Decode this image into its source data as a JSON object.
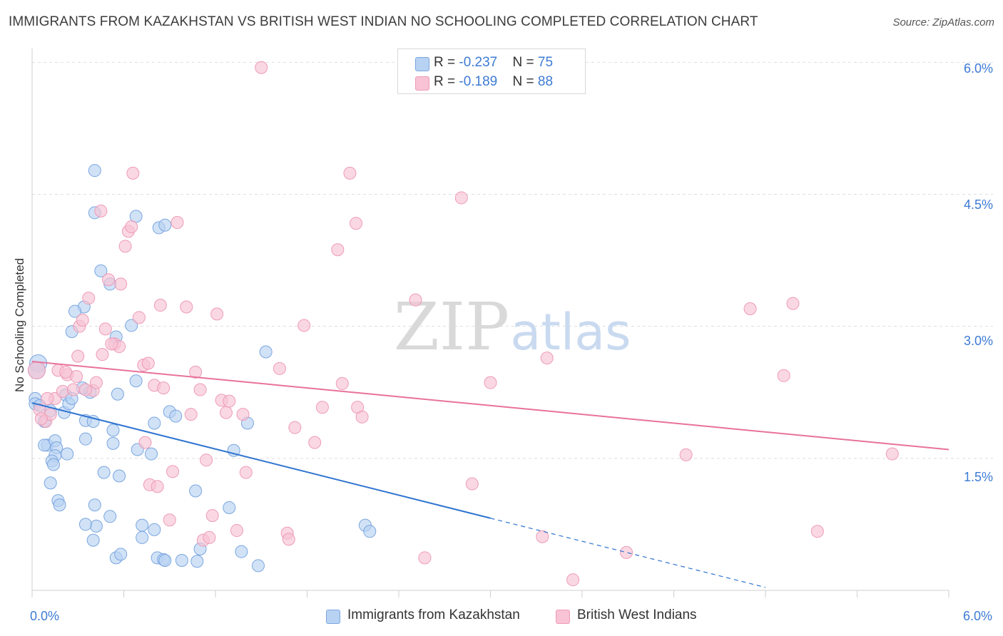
{
  "title": "IMMIGRANTS FROM KAZAKHSTAN VS BRITISH WEST INDIAN NO SCHOOLING COMPLETED CORRELATION CHART",
  "source": "Source: ZipAtlas.com",
  "watermark": {
    "zip": "ZIP",
    "atlas": "atlas"
  },
  "colors": {
    "blue_fill": "#b8d2f3",
    "blue_stroke": "#7aa6df",
    "blue_line": "#2f74d0",
    "pink_fill": "#f8c3d4",
    "pink_stroke": "#ee9bb7",
    "pink_line": "#e8729a",
    "tick_text": "#3d7bd4"
  },
  "legend_top": {
    "rows": [
      {
        "r_label": "R = ",
        "r_value": "-0.237",
        "n_label": "N = ",
        "n_value": "75"
      },
      {
        "r_label": "R = ",
        "r_value": "-0.189",
        "n_label": "N = ",
        "n_value": "88"
      }
    ]
  },
  "legend_bottom": [
    "Immigrants from Kazakhstan",
    "British West Indians"
  ],
  "chart_data": {
    "type": "scatter",
    "title": "IMMIGRANTS FROM KAZAKHSTAN VS BRITISH WEST INDIAN NO SCHOOLING COMPLETED CORRELATION CHART",
    "xlabel": "",
    "ylabel": "No Schooling Completed",
    "xlim": [
      0,
      6
    ],
    "ylim": [
      0,
      6.1
    ],
    "x_tick_labels": [
      "0.0%",
      "6.0%"
    ],
    "y_tick_values": [
      1.5,
      3.0,
      4.5,
      6.0
    ],
    "y_tick_labels": [
      "1.5%",
      "3.0%",
      "4.5%",
      "6.0%"
    ],
    "grid": "horizontal dashed",
    "legend_position": "bottom",
    "series": [
      {
        "name": "Immigrants from Kazakhstan",
        "r": -0.237,
        "n": 75,
        "trend": {
          "x0": 0.0,
          "y0": 2.13,
          "x1": 3.0,
          "y1": 0.82,
          "dash_to_x": 4.8
        },
        "points": [
          [
            0.04,
            2.58
          ],
          [
            0.03,
            2.5
          ],
          [
            0.02,
            2.18
          ],
          [
            0.02,
            2.12
          ],
          [
            0.05,
            2.1
          ],
          [
            0.08,
            1.92
          ],
          [
            0.12,
            2.04
          ],
          [
            0.1,
            1.65
          ],
          [
            0.08,
            1.65
          ],
          [
            0.15,
            1.7
          ],
          [
            0.16,
            1.62
          ],
          [
            0.15,
            1.53
          ],
          [
            0.13,
            1.47
          ],
          [
            0.14,
            1.43
          ],
          [
            0.12,
            1.22
          ],
          [
            0.23,
            1.55
          ],
          [
            0.17,
            1.02
          ],
          [
            0.18,
            0.97
          ],
          [
            0.35,
            1.72
          ],
          [
            0.35,
            1.93
          ],
          [
            0.4,
            1.92
          ],
          [
            0.38,
            2.25
          ],
          [
            0.22,
            2.22
          ],
          [
            0.21,
            2.02
          ],
          [
            0.24,
            2.12
          ],
          [
            0.26,
            2.18
          ],
          [
            0.33,
            2.3
          ],
          [
            0.41,
            0.97
          ],
          [
            0.42,
            0.73
          ],
          [
            0.35,
            0.75
          ],
          [
            0.4,
            0.57
          ],
          [
            0.51,
            0.84
          ],
          [
            0.55,
            0.37
          ],
          [
            0.58,
            0.41
          ],
          [
            0.47,
            1.34
          ],
          [
            0.53,
            1.82
          ],
          [
            0.53,
            1.67
          ],
          [
            0.57,
            1.3
          ],
          [
            0.56,
            2.23
          ],
          [
            0.68,
            2.38
          ],
          [
            0.69,
            1.6
          ],
          [
            0.72,
            0.74
          ],
          [
            0.72,
            0.6
          ],
          [
            0.8,
            0.69
          ],
          [
            0.78,
            1.55
          ],
          [
            0.8,
            1.9
          ],
          [
            0.82,
            0.37
          ],
          [
            0.86,
            0.35
          ],
          [
            0.87,
            0.34
          ],
          [
            0.9,
            2.03
          ],
          [
            0.94,
            1.98
          ],
          [
            0.98,
            0.34
          ],
          [
            1.08,
            0.33
          ],
          [
            1.07,
            1.13
          ],
          [
            1.1,
            0.47
          ],
          [
            1.29,
            0.94
          ],
          [
            1.32,
            1.59
          ],
          [
            1.37,
            0.44
          ],
          [
            1.48,
            0.28
          ],
          [
            1.41,
            1.9
          ],
          [
            1.53,
            2.71
          ],
          [
            0.45,
            3.63
          ],
          [
            0.51,
            3.48
          ],
          [
            0.34,
            3.22
          ],
          [
            0.28,
            3.17
          ],
          [
            0.26,
            2.94
          ],
          [
            0.41,
            4.29
          ],
          [
            0.55,
            2.88
          ],
          [
            0.65,
            3.01
          ],
          [
            0.41,
            4.77
          ],
          [
            0.68,
            4.25
          ],
          [
            0.83,
            4.12
          ],
          [
            0.87,
            4.15
          ],
          [
            2.18,
            0.74
          ],
          [
            2.21,
            0.67
          ]
        ]
      },
      {
        "name": "British West Indians",
        "r": -0.189,
        "n": 88,
        "trend": {
          "x0": 0.0,
          "y0": 2.6,
          "x1": 6.0,
          "y1": 1.6
        },
        "points": [
          [
            0.03,
            2.5
          ],
          [
            0.05,
            2.05
          ],
          [
            0.09,
            1.92
          ],
          [
            0.12,
            2.0
          ],
          [
            0.15,
            2.18
          ],
          [
            0.17,
            2.5
          ],
          [
            0.2,
            2.26
          ],
          [
            0.23,
            2.45
          ],
          [
            0.27,
            2.28
          ],
          [
            0.29,
            2.43
          ],
          [
            0.3,
            2.66
          ],
          [
            0.31,
            3.0
          ],
          [
            0.33,
            3.07
          ],
          [
            0.37,
            3.32
          ],
          [
            0.4,
            2.27
          ],
          [
            0.42,
            2.36
          ],
          [
            0.46,
            2.68
          ],
          [
            0.48,
            2.97
          ],
          [
            0.5,
            3.53
          ],
          [
            0.54,
            2.8
          ],
          [
            0.57,
            2.77
          ],
          [
            0.58,
            3.48
          ],
          [
            0.61,
            3.91
          ],
          [
            0.63,
            4.08
          ],
          [
            0.65,
            4.13
          ],
          [
            0.66,
            4.74
          ],
          [
            0.7,
            3.1
          ],
          [
            0.73,
            2.56
          ],
          [
            0.74,
            1.68
          ],
          [
            0.76,
            2.58
          ],
          [
            0.77,
            1.2
          ],
          [
            0.8,
            2.33
          ],
          [
            0.82,
            1.18
          ],
          [
            0.84,
            3.24
          ],
          [
            0.86,
            2.3
          ],
          [
            0.9,
            0.8
          ],
          [
            0.92,
            1.35
          ],
          [
            0.95,
            4.18
          ],
          [
            1.01,
            3.22
          ],
          [
            1.04,
            2.0
          ],
          [
            1.07,
            2.48
          ],
          [
            1.1,
            2.28
          ],
          [
            1.12,
            0.57
          ],
          [
            1.14,
            1.48
          ],
          [
            1.16,
            0.6
          ],
          [
            1.18,
            0.85
          ],
          [
            1.21,
            3.14
          ],
          [
            1.24,
            2.16
          ],
          [
            1.27,
            2.02
          ],
          [
            1.29,
            2.15
          ],
          [
            1.34,
            0.68
          ],
          [
            1.38,
            2.0
          ],
          [
            1.4,
            1.34
          ],
          [
            1.5,
            5.94
          ],
          [
            1.62,
            2.52
          ],
          [
            1.67,
            0.65
          ],
          [
            1.68,
            0.58
          ],
          [
            1.72,
            1.85
          ],
          [
            1.78,
            3.01
          ],
          [
            1.85,
            1.68
          ],
          [
            1.9,
            2.08
          ],
          [
            2.0,
            3.87
          ],
          [
            2.03,
            2.35
          ],
          [
            2.08,
            4.74
          ],
          [
            2.12,
            4.17
          ],
          [
            2.13,
            2.08
          ],
          [
            2.16,
            1.97
          ],
          [
            2.51,
            3.3
          ],
          [
            2.57,
            0.37
          ],
          [
            2.81,
            4.46
          ],
          [
            2.88,
            1.21
          ],
          [
            3.0,
            2.36
          ],
          [
            3.34,
            0.61
          ],
          [
            3.37,
            2.64
          ],
          [
            3.54,
            0.12
          ],
          [
            3.89,
            0.43
          ],
          [
            4.28,
            1.54
          ],
          [
            4.7,
            3.2
          ],
          [
            4.92,
            2.44
          ],
          [
            4.98,
            3.26
          ],
          [
            5.14,
            0.67
          ],
          [
            5.63,
            1.55
          ],
          [
            0.45,
            4.31
          ],
          [
            0.52,
            2.8
          ],
          [
            0.35,
            2.28
          ],
          [
            0.22,
            2.48
          ],
          [
            0.1,
            2.18
          ],
          [
            0.06,
            1.95
          ]
        ]
      }
    ]
  }
}
